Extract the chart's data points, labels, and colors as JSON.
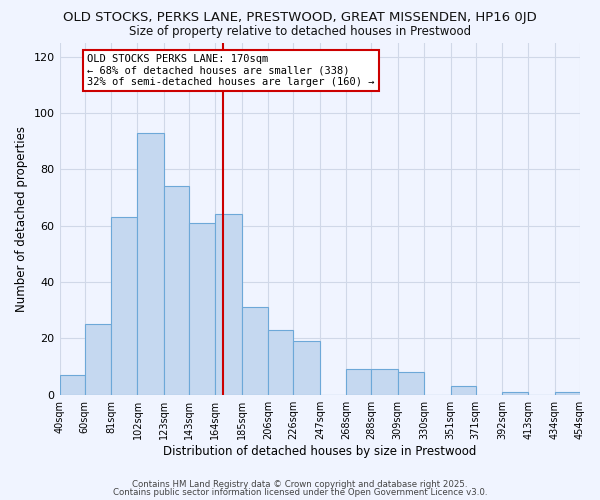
{
  "title": "OLD STOCKS, PERKS LANE, PRESTWOOD, GREAT MISSENDEN, HP16 0JD",
  "subtitle": "Size of property relative to detached houses in Prestwood",
  "xlabel": "Distribution of detached houses by size in Prestwood",
  "ylabel": "Number of detached properties",
  "bar_edges": [
    40,
    60,
    81,
    102,
    123,
    143,
    164,
    185,
    206,
    226,
    247,
    268,
    288,
    309,
    330,
    351,
    371,
    392,
    413,
    434,
    454
  ],
  "bar_heights": [
    7,
    25,
    63,
    93,
    74,
    61,
    64,
    31,
    23,
    19,
    0,
    9,
    9,
    8,
    0,
    3,
    0,
    1,
    0,
    1
  ],
  "bar_color": "#c5d8f0",
  "bar_edge_color": "#6da8d8",
  "vline_x": 170,
  "vline_color": "#cc0000",
  "ylim": [
    0,
    125
  ],
  "yticks": [
    0,
    20,
    40,
    60,
    80,
    100,
    120
  ],
  "annotation_title": "OLD STOCKS PERKS LANE: 170sqm",
  "annotation_line1": "← 68% of detached houses are smaller (338)",
  "annotation_line2": "32% of semi-detached houses are larger (160) →",
  "annotation_box_color": "#ffffff",
  "annotation_box_edge": "#cc0000",
  "footer1": "Contains HM Land Registry data © Crown copyright and database right 2025.",
  "footer2": "Contains public sector information licensed under the Open Government Licence v3.0.",
  "background_color": "#f0f4ff",
  "grid_color": "#d0d8e8",
  "title_fontsize": 9.5,
  "subtitle_fontsize": 8.5,
  "tick_labels": [
    "40sqm",
    "60sqm",
    "81sqm",
    "102sqm",
    "123sqm",
    "143sqm",
    "164sqm",
    "185sqm",
    "206sqm",
    "226sqm",
    "247sqm",
    "268sqm",
    "288sqm",
    "309sqm",
    "330sqm",
    "351sqm",
    "371sqm",
    "392sqm",
    "413sqm",
    "434sqm",
    "454sqm"
  ]
}
